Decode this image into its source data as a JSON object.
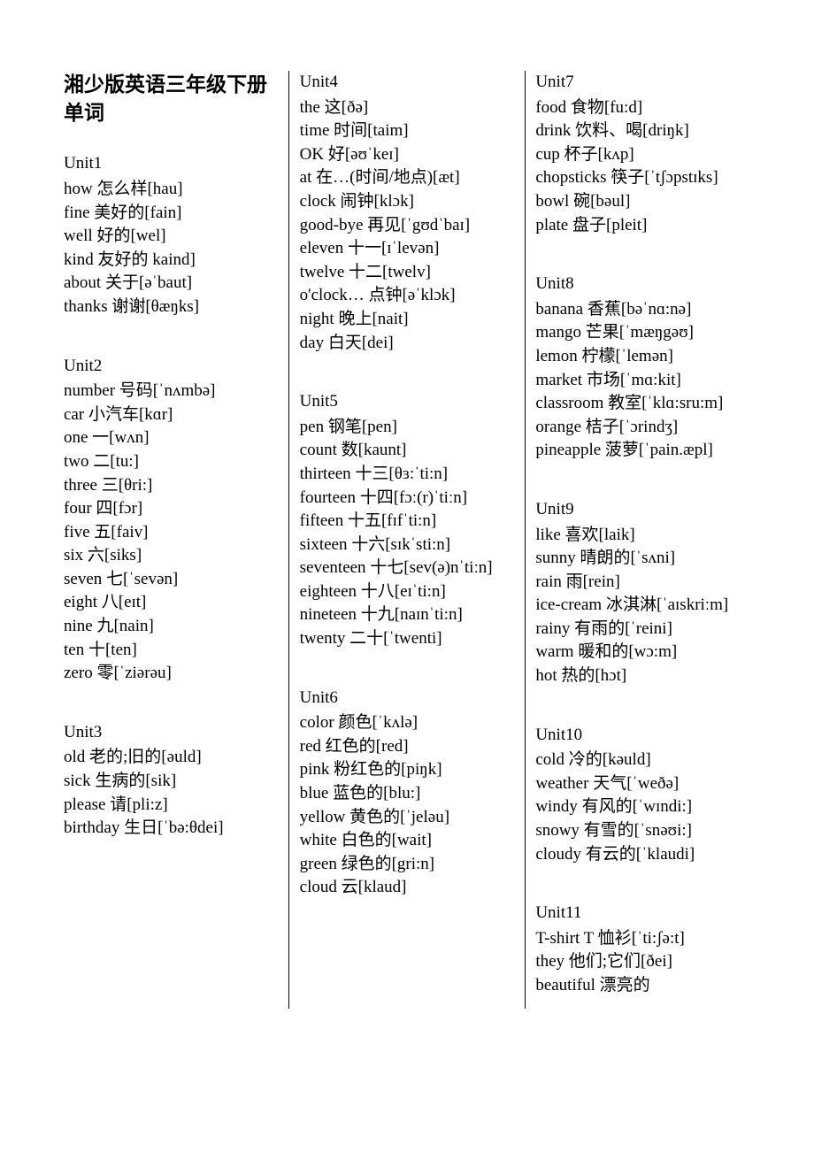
{
  "title": "湘少版英语三年级下册单词",
  "text_color": "#000000",
  "background_color": "#ffffff",
  "rule_color": "#000000",
  "title_fontsize": 23,
  "body_fontsize": 19,
  "units": [
    {
      "name": "Unit1",
      "entries": [
        "how 怎么样[hau]",
        "fine 美好的[fain]",
        "well 好的[wel]",
        "kind 友好的 kaind]",
        "about 关于[əˈbaut]",
        "thanks 谢谢[θæŋks]"
      ]
    },
    {
      "name": "Unit2",
      "entries": [
        "number 号码[ˈnʌmbə]",
        "car 小汽车[kɑr]",
        "one 一[wʌn]",
        "two 二[tu:]",
        "three 三[θri:]",
        "four 四[fɔr]",
        "five 五[faiv]",
        "six 六[siks]",
        "seven 七[ˈsevən]",
        "eight 八[eɪt]",
        "nine 九[nain]",
        "ten 十[ten]",
        "zero 零[ˈziərəu]"
      ]
    },
    {
      "name": "Unit3",
      "entries": [
        "old 老的;旧的[əuld]",
        "sick 生病的[sik]",
        "please 请[pli:z]",
        "birthday 生日[ˈbə:θdei]"
      ]
    },
    {
      "name": "Unit4",
      "entries": [
        "the 这[ðə]",
        "time 时间[taim]",
        "OK 好[əʊˈkeɪ]",
        "at 在…(时间/地点)[æt]",
        "clock 闹钟[klɔk]",
        "good-bye 再见[ˈgʊdˈbaɪ]",
        "eleven 十一[ɪˈlevən]",
        "twelve 十二[twelv]",
        "o'clock… 点钟[əˈklɔk]",
        "night 晚上[nait]",
        "day 白天[dei]"
      ]
    },
    {
      "name": "Unit5",
      "entries": [
        "pen 钢笔[pen]",
        "count 数[kaunt]",
        "thirteen 十三[θɜ:ˈti:n]",
        "fourteen 十四[fɔː(r)ˈtiːn]",
        "fifteen 十五[fɪfˈti:n]",
        "sixteen 十六[sɪkˈsti:n]",
        "seventeen 十七[sev(ə)nˈtiːn]",
        "eighteen 十八[eɪˈti:n]",
        "nineteen 十九[naɪnˈti:n]",
        "twenty 二十[ˈtwenti]"
      ]
    },
    {
      "name": "Unit6",
      "entries": [
        "color 颜色[ˈkʌlə]",
        "red 红色的[red]",
        "pink 粉红色的[piŋk]",
        "blue 蓝色的[blu:]",
        "yellow 黄色的[ˈjeləu]",
        "white 白色的[wait]",
        "green 绿色的[gri:n]",
        "cloud 云[klaud]"
      ]
    },
    {
      "name": "Unit7",
      "entries": [
        "food 食物[fu:d]",
        "drink 饮料、喝[driŋk]",
        "cup 杯子[kʌp]",
        "chopsticks 筷子[ˈtʃɔpstɪks]",
        "bowl 碗[bəul]",
        "plate 盘子[pleit]"
      ]
    },
    {
      "name": "Unit8",
      "entries": [
        "banana 香蕉[bəˈnɑ:nə]",
        "mango 芒果[ˈmæŋgəʊ]",
        "lemon 柠檬[ˈlemən]",
        "market 市场[ˈmɑ:kit]",
        "classroom 教室[ˈklɑ:sru:m]",
        "orange 桔子[ˈɔrindʒ]",
        "pineapple 菠萝[ˈpain.æpl]"
      ]
    },
    {
      "name": "Unit9",
      "entries": [
        "like 喜欢[laik]",
        "sunny 晴朗的[ˈsʌni]",
        "rain 雨[rein]",
        "ice-cream 冰淇淋[ˈaɪskriːm]",
        "rainy 有雨的[ˈreini]",
        "warm 暖和的[wɔ:m]",
        "hot 热的[hɔt]"
      ]
    },
    {
      "name": "Unit10",
      "entries": [
        "cold 冷的[kəuld]",
        "weather 天气[ˈweðə]",
        "windy 有风的[ˈwɪndi:]",
        "snowy 有雪的[ˈsnəʊi:]",
        "cloudy 有云的[ˈklaudi]"
      ]
    },
    {
      "name": "Unit11",
      "entries": [
        "T-shirt T 恤衫[ˈti:ʃə:t]",
        "they 他们;它们[ðei]",
        "beautiful 漂亮的"
      ]
    }
  ]
}
